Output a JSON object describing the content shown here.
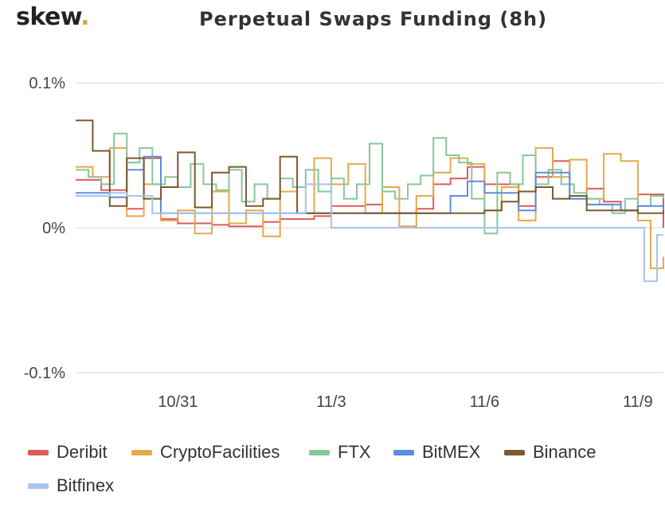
{
  "brand": {
    "name": "skew",
    "dot": "."
  },
  "chart_data": {
    "type": "line",
    "step": true,
    "title": "Perpetual Swaps Funding (8h)",
    "xlabel": "",
    "ylabel": "",
    "ylim": [
      -0.1,
      0.1
    ],
    "xlim": [
      "2020-10-29",
      "2020-11-09 12:00"
    ],
    "yticks": [
      {
        "value": 0.1,
        "label": "0.1%"
      },
      {
        "value": 0,
        "label": "0%"
      },
      {
        "value": -0.1,
        "label": "-0.1%"
      }
    ],
    "xticks": [
      {
        "value": "2020-10-31",
        "label": "10/31"
      },
      {
        "value": "2020-11-03",
        "label": "11/3"
      },
      {
        "value": "2020-11-06",
        "label": "11/6"
      },
      {
        "value": "2020-11-09",
        "label": "11/9"
      }
    ],
    "grid": "horizontal",
    "legend_position": "bottom",
    "series": [
      {
        "name": "Deribit",
        "color": "#e05a5a",
        "x": [
          "2020-10-29",
          "2020-10-29 12:00",
          "2020-10-30",
          "2020-10-30 08:00",
          "2020-10-30 16:00",
          "2020-10-31",
          "2020-10-31 16:00",
          "2020-11-01",
          "2020-11-01 16:00",
          "2020-11-02",
          "2020-11-02 16:00",
          "2020-11-03",
          "2020-11-03 16:00",
          "2020-11-04",
          "2020-11-04 16:00",
          "2020-11-05",
          "2020-11-05 08:00",
          "2020-11-05 16:00",
          "2020-11-06",
          "2020-11-06 16:00",
          "2020-11-07",
          "2020-11-07 08:00",
          "2020-11-07 16:00",
          "2020-11-08",
          "2020-11-08 08:00",
          "2020-11-08 16:00",
          "2020-11-09",
          "2020-11-09 12:00"
        ],
        "y": [
          0.033,
          0.026,
          0.013,
          0.048,
          0.006,
          0.003,
          0.002,
          0.001,
          0.004,
          0.006,
          0.008,
          0.015,
          0.016,
          0.01,
          0.013,
          0.03,
          0.034,
          0.042,
          0.03,
          0.015,
          0.035,
          0.046,
          0.02,
          0.027,
          0.018,
          0.012,
          0.023,
          0.0
        ]
      },
      {
        "name": "CryptoFacilities",
        "color": "#e3aa4b",
        "x": [
          "2020-10-29",
          "2020-10-29 08:00",
          "2020-10-29 16:00",
          "2020-10-30",
          "2020-10-30 08:00",
          "2020-10-30 16:00",
          "2020-10-31",
          "2020-10-31 08:00",
          "2020-10-31 16:00",
          "2020-11-01",
          "2020-11-01 08:00",
          "2020-11-01 16:00",
          "2020-11-02",
          "2020-11-02 08:00",
          "2020-11-02 16:00",
          "2020-11-03",
          "2020-11-03 08:00",
          "2020-11-03 16:00",
          "2020-11-04",
          "2020-11-04 08:00",
          "2020-11-04 16:00",
          "2020-11-05",
          "2020-11-05 08:00",
          "2020-11-05 16:00",
          "2020-11-06",
          "2020-11-06 08:00",
          "2020-11-06 16:00",
          "2020-11-07",
          "2020-11-07 08:00",
          "2020-11-07 16:00",
          "2020-11-08",
          "2020-11-08 08:00",
          "2020-11-08 16:00",
          "2020-11-09",
          "2020-11-09 06:00",
          "2020-11-09 12:00"
        ],
        "y": [
          0.042,
          0.035,
          0.055,
          0.008,
          0.03,
          0.005,
          0.012,
          -0.004,
          0.025,
          0.003,
          0.012,
          -0.006,
          0.025,
          0.01,
          0.048,
          0.03,
          0.044,
          0.01,
          0.028,
          0.001,
          0.022,
          0.038,
          0.048,
          0.044,
          0.012,
          0.028,
          0.005,
          0.055,
          0.035,
          0.047,
          0.02,
          0.051,
          0.046,
          0.005,
          -0.028,
          -0.02
        ]
      },
      {
        "name": "FTX",
        "color": "#86c79b",
        "x": [
          "2020-10-29",
          "2020-10-29 06:00",
          "2020-10-29 12:00",
          "2020-10-29 18:00",
          "2020-10-30",
          "2020-10-30 06:00",
          "2020-10-30 12:00",
          "2020-10-30 18:00",
          "2020-10-31",
          "2020-10-31 06:00",
          "2020-10-31 12:00",
          "2020-10-31 18:00",
          "2020-11-01",
          "2020-11-01 06:00",
          "2020-11-01 12:00",
          "2020-11-01 18:00",
          "2020-11-02",
          "2020-11-02 06:00",
          "2020-11-02 12:00",
          "2020-11-02 18:00",
          "2020-11-03",
          "2020-11-03 06:00",
          "2020-11-03 12:00",
          "2020-11-03 18:00",
          "2020-11-04",
          "2020-11-04 06:00",
          "2020-11-04 12:00",
          "2020-11-04 18:00",
          "2020-11-05",
          "2020-11-05 06:00",
          "2020-11-05 12:00",
          "2020-11-05 18:00",
          "2020-11-06",
          "2020-11-06 06:00",
          "2020-11-06 12:00",
          "2020-11-06 18:00",
          "2020-11-07",
          "2020-11-07 06:00",
          "2020-11-07 12:00",
          "2020-11-07 18:00",
          "2020-11-08",
          "2020-11-08 06:00",
          "2020-11-08 12:00",
          "2020-11-08 18:00",
          "2020-11-09",
          "2020-11-09 06:00",
          "2020-11-09 12:00"
        ],
        "y": [
          0.04,
          0.035,
          0.03,
          0.065,
          0.045,
          0.055,
          0.03,
          0.035,
          0.028,
          0.044,
          0.03,
          0.026,
          0.04,
          0.018,
          0.03,
          0.02,
          0.034,
          0.028,
          0.04,
          0.025,
          0.034,
          0.02,
          0.03,
          0.058,
          0.025,
          0.02,
          0.03,
          0.036,
          0.062,
          0.05,
          0.045,
          0.02,
          -0.004,
          0.038,
          0.03,
          0.05,
          0.03,
          0.04,
          0.03,
          0.024,
          0.02,
          0.016,
          0.01,
          0.02,
          0.015,
          0.022,
          0.02
        ]
      },
      {
        "name": "BitMEX",
        "color": "#5b8ee0",
        "x": [
          "2020-10-29",
          "2020-10-29 16:00",
          "2020-10-30",
          "2020-10-30 08:00",
          "2020-10-30 16:00",
          "2020-11-04 12:00",
          "2020-11-05 08:00",
          "2020-11-05 16:00",
          "2020-11-06",
          "2020-11-06 16:00",
          "2020-11-07",
          "2020-11-07 16:00",
          "2020-11-08",
          "2020-11-08 16:00",
          "2020-11-09",
          "2020-11-09 12:00"
        ],
        "y": [
          0.024,
          0.021,
          0.04,
          0.049,
          0.01,
          0.01,
          0.022,
          0.032,
          0.024,
          0.012,
          0.038,
          0.02,
          0.016,
          0.012,
          0.015,
          0.012
        ]
      },
      {
        "name": "Binance",
        "color": "#7b5a2e",
        "x": [
          "2020-10-29",
          "2020-10-29 08:00",
          "2020-10-29 16:00",
          "2020-10-30",
          "2020-10-30 08:00",
          "2020-10-30 16:00",
          "2020-10-31",
          "2020-10-31 08:00",
          "2020-10-31 16:00",
          "2020-11-01",
          "2020-11-01 08:00",
          "2020-11-01 16:00",
          "2020-11-02",
          "2020-11-02 08:00",
          "2020-11-02 16:00",
          "2020-11-05",
          "2020-11-06",
          "2020-11-06 08:00",
          "2020-11-06 16:00",
          "2020-11-07",
          "2020-11-07 08:00",
          "2020-11-07 16:00",
          "2020-11-08",
          "2020-11-09",
          "2020-11-09 12:00"
        ],
        "y": [
          0.074,
          0.053,
          0.015,
          0.048,
          0.02,
          0.028,
          0.052,
          0.014,
          0.038,
          0.042,
          0.015,
          0.02,
          0.049,
          0.01,
          0.01,
          0.01,
          0.012,
          0.018,
          0.025,
          0.028,
          0.02,
          0.022,
          0.012,
          0.01,
          0.012
        ]
      },
      {
        "name": "Bitfinex",
        "color": "#a9c2ee",
        "x": [
          "2020-10-29",
          "2020-10-29 16:00",
          "2020-10-30",
          "2020-10-30 12:00",
          "2020-11-02 12:00",
          "2020-11-03",
          "2020-11-09",
          "2020-11-09 03:00",
          "2020-11-09 09:00",
          "2020-11-09 12:00"
        ],
        "y": [
          0.022,
          0.024,
          0.022,
          0.01,
          0.03,
          0.0,
          0.0,
          -0.037,
          -0.005,
          -0.005
        ]
      }
    ]
  }
}
